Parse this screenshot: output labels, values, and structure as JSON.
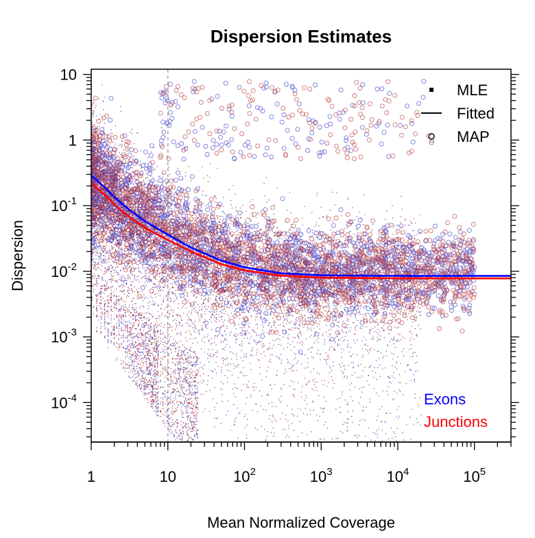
{
  "chart_data": {
    "type": "scatter",
    "title": "Dispersion Estimates",
    "xlabel": "Mean Normalized Coverage",
    "ylabel": "Dispersion",
    "x_scale": "log",
    "y_scale": "log",
    "xlim": [
      1,
      300000
    ],
    "ylim": [
      2.5e-05,
      12
    ],
    "x_ticks": [
      {
        "value": 1,
        "label": "1"
      },
      {
        "value": 10,
        "label": "10"
      },
      {
        "value": 100,
        "base": "10",
        "exp": "2"
      },
      {
        "value": 1000,
        "base": "10",
        "exp": "3"
      },
      {
        "value": 10000,
        "base": "10",
        "exp": "4"
      },
      {
        "value": 100000,
        "base": "10",
        "exp": "5"
      }
    ],
    "y_ticks": [
      {
        "value": 10,
        "label": "10"
      },
      {
        "value": 1,
        "label": "1"
      },
      {
        "value": 0.1,
        "base": "10",
        "exp": "-1"
      },
      {
        "value": 0.01,
        "base": "10",
        "exp": "-2"
      },
      {
        "value": 0.001,
        "base": "10",
        "exp": "-3"
      },
      {
        "value": 0.0001,
        "base": "10",
        "exp": "-4"
      }
    ],
    "vline": {
      "x": 10,
      "style": "dashed",
      "color": "#aaaaaa"
    },
    "legend_symbols": {
      "position": "top-right",
      "items": [
        {
          "label": "MLE",
          "marker": "filled-square"
        },
        {
          "label": "Fitted",
          "marker": "line"
        },
        {
          "label": "MAP",
          "marker": "open-circle"
        }
      ]
    },
    "legend_groups": {
      "position": "bottom-right",
      "items": [
        {
          "label": "Exons",
          "color": "#0000ff"
        },
        {
          "label": "Junctions",
          "color": "#ff0000"
        }
      ]
    },
    "series": [
      {
        "name": "Exons",
        "kind": "fitted",
        "color": "#0000ff",
        "points": [
          [
            1,
            0.29
          ],
          [
            1.5,
            0.19
          ],
          [
            2,
            0.135
          ],
          [
            3,
            0.09
          ],
          [
            5,
            0.058
          ],
          [
            10,
            0.036
          ],
          [
            20,
            0.023
          ],
          [
            50,
            0.0145
          ],
          [
            100,
            0.0115
          ],
          [
            300,
            0.0093
          ],
          [
            1000,
            0.0087
          ],
          [
            10000,
            0.0085
          ],
          [
            300000,
            0.0085
          ]
        ]
      },
      {
        "name": "Junctions",
        "kind": "fitted",
        "color": "#ff0000",
        "points": [
          [
            1,
            0.22
          ],
          [
            1.5,
            0.145
          ],
          [
            2,
            0.105
          ],
          [
            3,
            0.07
          ],
          [
            5,
            0.046
          ],
          [
            10,
            0.03
          ],
          [
            20,
            0.02
          ],
          [
            50,
            0.0128
          ],
          [
            100,
            0.0103
          ],
          [
            300,
            0.0086
          ],
          [
            1000,
            0.008
          ],
          [
            10000,
            0.0078
          ],
          [
            300000,
            0.0078
          ]
        ]
      }
    ],
    "point_colors": {
      "exons_mle": "#2a2ab8",
      "junctions_mle": "#a01010",
      "exons_map": "#3030c8",
      "junctions_map": "#b02828"
    }
  }
}
